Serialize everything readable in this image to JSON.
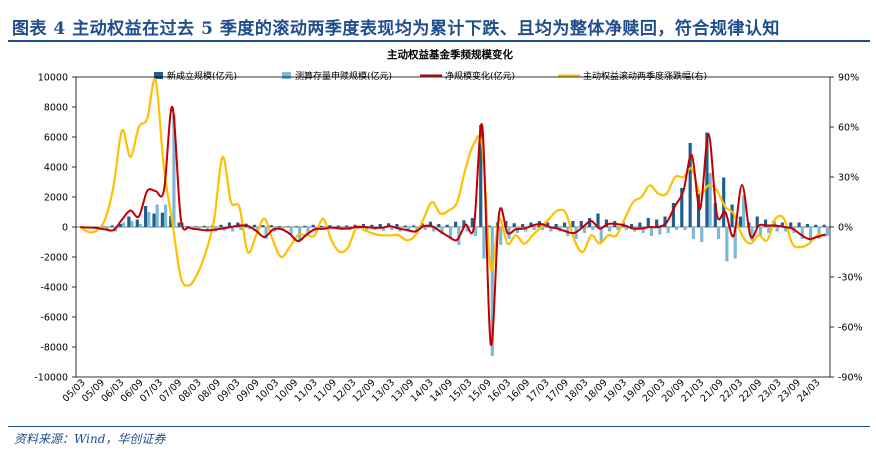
{
  "figure": {
    "title": "图表 4   主动权益在过去 5 季度的滚动两季度表现均为累计下跌、且均为整体净赎回，符合规律认知",
    "source": "资料来源：Wind，华创证券"
  },
  "colors": {
    "new_issue": "#1f5f8b",
    "redemption": "#7fb8d6",
    "net_change": "#c00000",
    "rolling_return": "#ffc000",
    "rule": "#1f4e8c"
  },
  "chart_data": {
    "type": "bar",
    "title": "主动权益基金季频规模变化",
    "x_tick_labels": [
      "05/03",
      "05/09",
      "06/03",
      "06/09",
      "07/03",
      "07/09",
      "08/03",
      "08/09",
      "09/03",
      "09/09",
      "10/03",
      "10/09",
      "11/03",
      "11/09",
      "12/03",
      "12/09",
      "13/03",
      "13/09",
      "14/03",
      "14/09",
      "15/03",
      "15/09",
      "16/03",
      "16/09",
      "17/03",
      "17/09",
      "18/03",
      "18/09",
      "19/03",
      "19/09",
      "20/03",
      "20/09",
      "21/03",
      "21/09",
      "22/03",
      "22/09",
      "23/03",
      "23/09",
      "24/03"
    ],
    "y_left": {
      "min": -10000,
      "max": 10000,
      "step": 2000
    },
    "y_right": {
      "min": -90,
      "max": 90,
      "step": 30,
      "unit": "%"
    },
    "legend": [
      "新成立规模(亿元)",
      "测算存量申赎规模(亿元)",
      "净规模变化(亿元)",
      "主动权益滚动两季度涨跌幅(右)"
    ],
    "series": [
      {
        "name": "新成立规模(亿元)",
        "type": "bar",
        "axis": "left",
        "values": [
          20,
          20,
          30,
          40,
          100,
          200,
          700,
          500,
          1400,
          900,
          950,
          750,
          300,
          60,
          50,
          80,
          120,
          150,
          300,
          300,
          220,
          150,
          130,
          120,
          60,
          50,
          60,
          80,
          150,
          80,
          120,
          100,
          100,
          150,
          200,
          150,
          200,
          250,
          200,
          100,
          100,
          250,
          350,
          200,
          150,
          350,
          450,
          600,
          6800,
          100,
          300,
          400,
          250,
          200,
          300,
          400,
          300,
          200,
          300,
          400,
          400,
          600,
          900,
          500,
          400,
          300,
          200,
          300,
          600,
          500,
          700,
          1600,
          2600,
          5600,
          2200,
          6300,
          1600,
          3300,
          1500,
          700,
          300,
          700,
          500,
          400,
          300,
          300,
          300,
          200,
          150,
          150
        ]
      },
      {
        "name": "测算存量申赎规模(亿元)",
        "type": "bar",
        "axis": "left",
        "values": [
          -30,
          -50,
          -100,
          -200,
          -300,
          300,
          400,
          200,
          1000,
          1500,
          1500,
          7500,
          300,
          -100,
          -200,
          -300,
          -300,
          -250,
          -300,
          -200,
          -150,
          -400,
          -800,
          -300,
          -200,
          -500,
          -1000,
          -600,
          -300,
          -200,
          -150,
          -200,
          -200,
          -150,
          -200,
          -200,
          -250,
          -200,
          -300,
          -300,
          -400,
          -200,
          -300,
          -500,
          -800,
          -1200,
          -300,
          -600,
          -2100,
          -8600,
          -1200,
          -800,
          -400,
          -300,
          -200,
          -200,
          -300,
          -300,
          -600,
          -800,
          -400,
          -200,
          -1000,
          -300,
          -200,
          -200,
          -300,
          -400,
          -600,
          -500,
          -400,
          -200,
          -200,
          -800,
          -1000,
          3600,
          -800,
          -2300,
          -2100,
          2100,
          -900,
          -600,
          -400,
          -300,
          -300,
          -400,
          -800,
          -1000,
          -800,
          -600
        ]
      },
      {
        "name": "净规模变化(亿元)",
        "type": "line",
        "axis": "left",
        "values": [
          -10,
          -30,
          -70,
          -160,
          -200,
          500,
          1100,
          700,
          2400,
          2400,
          2450,
          8000,
          600,
          -40,
          -150,
          -220,
          -180,
          -100,
          0,
          100,
          70,
          -250,
          -670,
          -180,
          -140,
          -450,
          -940,
          -520,
          -150,
          -120,
          -30,
          -100,
          -100,
          0,
          0,
          -50,
          -50,
          50,
          -100,
          -200,
          -300,
          50,
          50,
          -300,
          -650,
          -850,
          150,
          0,
          6700,
          -7800,
          900,
          -400,
          -150,
          -100,
          100,
          200,
          0,
          -100,
          -300,
          -400,
          0,
          400,
          -100,
          200,
          200,
          100,
          -100,
          -100,
          0,
          0,
          300,
          1400,
          2400,
          4800,
          1200,
          6200,
          800,
          1000,
          -600,
          2800,
          -600,
          100,
          100,
          100,
          0,
          -100,
          -500,
          -800,
          -650,
          -500
        ]
      },
      {
        "name": "主动权益滚动两季度涨跌幅(右)",
        "type": "line",
        "axis": "right",
        "values": [
          0,
          -3,
          -2,
          5,
          25,
          58,
          42,
          60,
          65,
          88,
          35,
          3,
          -30,
          -35,
          -28,
          -15,
          5,
          42,
          15,
          12,
          -15,
          -5,
          5,
          -8,
          -18,
          -12,
          -5,
          -5,
          -5,
          5,
          -8,
          -15,
          -12,
          0,
          -2,
          -4,
          -5,
          -5,
          -5,
          -8,
          -5,
          5,
          15,
          8,
          10,
          15,
          35,
          50,
          48,
          -25,
          5,
          -10,
          -5,
          -10,
          -5,
          0,
          5,
          10,
          8,
          -8,
          -15,
          -5,
          -10,
          -5,
          -5,
          5,
          15,
          18,
          25,
          20,
          20,
          30,
          30,
          35,
          20,
          25,
          22,
          12,
          8,
          -5,
          -10,
          -5,
          -8,
          5,
          5,
          -10,
          -12,
          -10,
          -5,
          -5
        ]
      }
    ]
  }
}
